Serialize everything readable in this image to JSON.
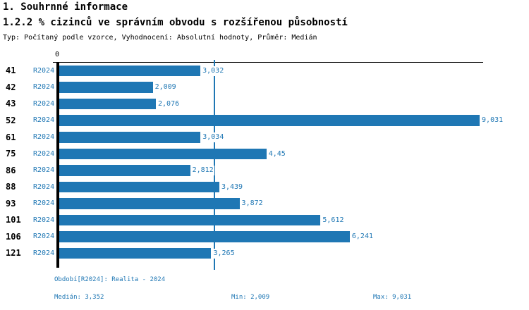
{
  "header": {
    "title_line1": "1. Souhrnné informace",
    "title_line2": "1.2.2 % cizinců ve správním obvodu s rozšířenou působností",
    "subtitle": "Typ: Počítaný podle vzorce, Vyhodnocení: Absolutní hodnoty, Průměr: Medián"
  },
  "chart_data": {
    "type": "bar",
    "orientation": "horizontal",
    "title": "1.2.2 % cizinců ve správním obvodu s rozšířenou působností",
    "categories": [
      "41",
      "42",
      "43",
      "52",
      "61",
      "75",
      "86",
      "88",
      "93",
      "101",
      "106",
      "121"
    ],
    "series": [
      {
        "name": "R2024",
        "values": [
          3.032,
          2.009,
          2.076,
          9.031,
          3.034,
          4.45,
          2.812,
          3.439,
          3.872,
          5.612,
          6.241,
          3.265
        ],
        "value_labels": [
          "3,032",
          "2,009",
          "2,076",
          "9,031",
          "3,034",
          "4,45",
          "2,812",
          "3,439",
          "3,872",
          "5,612",
          "6,241",
          "3,265"
        ]
      }
    ],
    "xlim": [
      0,
      9.1
    ],
    "zero_tick_label": "0",
    "grid": false,
    "reference_line": {
      "label": "Medián",
      "value": 3.352
    },
    "stats": {
      "median": 3.352,
      "min": 2.009,
      "max": 9.031
    },
    "bar_color": "#1f77b4",
    "label_color": "#1f77b4"
  },
  "footer": {
    "period": "Období[R2024]: Realita - 2024",
    "median": "Medián: 3,352",
    "min": "Min: 2,009",
    "max": "Max: 9,031"
  }
}
